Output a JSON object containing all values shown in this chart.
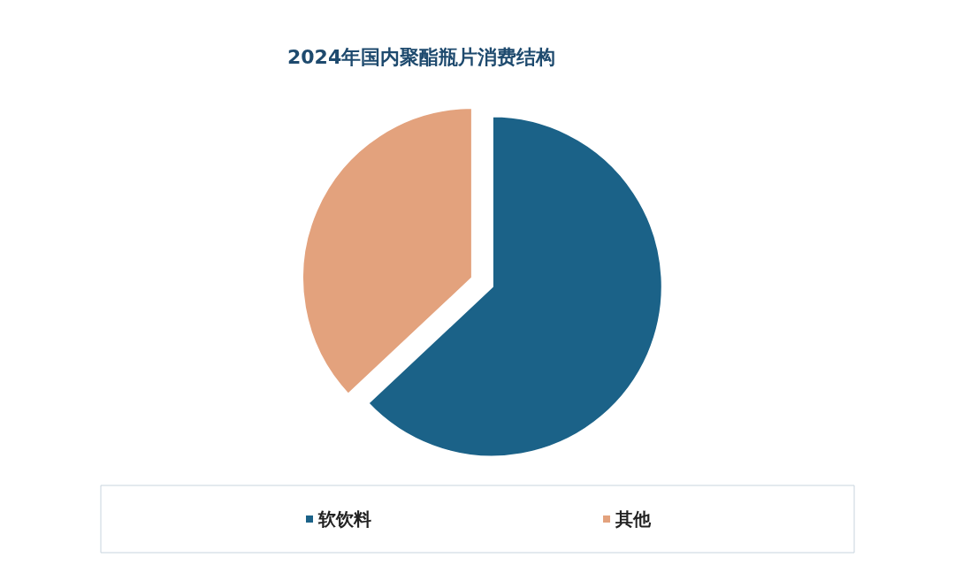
{
  "chart_data": {
    "type": "pie",
    "title": "2024年国内聚酯瓶片消费结构",
    "categories": [
      "软饮料",
      "其他"
    ],
    "values": [
      63,
      37
    ],
    "colors": [
      "#1b6288",
      "#e3a27d"
    ],
    "legend": "bottom"
  }
}
